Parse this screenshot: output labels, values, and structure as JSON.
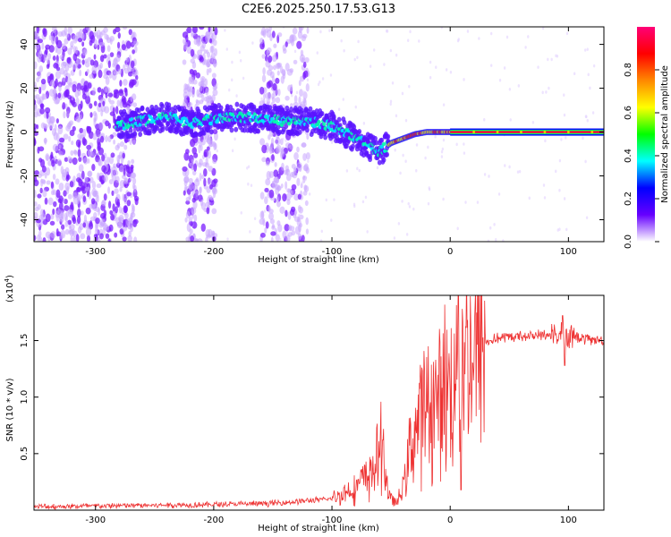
{
  "page_title": "C2E6.2025.250.17.53.G13",
  "chart_data": [
    {
      "type": "heatmap",
      "title": "C2E6.2025.250.17.53.G13",
      "xlabel": "Height of straight line (km)",
      "ylabel": "Frequency (Hz)",
      "xlim": [
        -352,
        130
      ],
      "ylim": [
        -50,
        48
      ],
      "xticks": [
        -300,
        -200,
        -100,
        0,
        100
      ],
      "xtick_labels": [
        "-300",
        "-200",
        "-100",
        "0",
        "100"
      ],
      "yticks": [
        -40,
        -20,
        0,
        20,
        40
      ],
      "ytick_labels": [
        "-40",
        "-20",
        "0",
        "20",
        "40"
      ],
      "ridge": {
        "x": [
          -280,
          -260,
          -240,
          -220,
          -200,
          -180,
          -160,
          -140,
          -120,
          -100,
          -90,
          -80,
          -70,
          -60,
          -50,
          -40,
          -30,
          -20,
          -10,
          0,
          10,
          130
        ],
        "y": [
          3,
          5,
          7,
          4,
          6,
          7,
          6,
          5,
          5,
          3,
          0,
          -3,
          -6,
          -9,
          -5,
          -3,
          -1,
          0,
          0,
          0,
          0,
          0
        ]
      },
      "noise_bands": [
        {
          "from": -352,
          "to": -265,
          "level": "high"
        },
        {
          "from": -225,
          "to": -198,
          "level": "medium"
        },
        {
          "from": -160,
          "to": -120,
          "level": "medium"
        }
      ],
      "colorbar": {
        "label": "Normalized spectral amplitude",
        "range": [
          0,
          1
        ],
        "ticks": [
          0.0,
          0.2,
          0.4,
          0.6,
          0.8
        ],
        "tick_labels": [
          "0.0",
          "0.2",
          "0.4",
          "0.6",
          "0.8"
        ],
        "colors": [
          "#ffffff",
          "#6600ff",
          "#0000ff",
          "#00ffff",
          "#00ff00",
          "#ffff00",
          "#ff8800",
          "#ff0000",
          "#ff0077"
        ]
      }
    },
    {
      "type": "line",
      "xlabel": "Height of straight line (km)",
      "ylabel": "SNR (10 * v/v)",
      "scale_label": "(x10",
      "scale_exponent": "4",
      "scale_close": ")",
      "xlim": [
        -352,
        130
      ],
      "ylim": [
        0,
        1.9
      ],
      "xticks": [
        -300,
        -200,
        -100,
        0,
        100
      ],
      "xtick_labels": [
        "-300",
        "-200",
        "-100",
        "0",
        "100"
      ],
      "yticks": [
        0.5,
        1.0,
        1.5
      ],
      "ytick_labels": [
        "0.5",
        "1.0",
        "1.5"
      ],
      "color": "#ee3333",
      "envelope": {
        "x": [
          -352,
          -200,
          -150,
          -100,
          -80,
          -65,
          -60,
          -57,
          -52,
          -45,
          -40,
          -35,
          -30,
          -25,
          -20,
          -15,
          -10,
          -5,
          0,
          5,
          10,
          20,
          30,
          40,
          60,
          80,
          90,
          100,
          110,
          130
        ],
        "y": [
          0.03,
          0.05,
          0.06,
          0.1,
          0.2,
          0.35,
          0.5,
          0.55,
          0.12,
          0.06,
          0.2,
          0.5,
          0.7,
          0.85,
          0.95,
          0.9,
          1.0,
          1.05,
          1.1,
          1.2,
          1.3,
          1.4,
          1.48,
          1.52,
          1.54,
          1.55,
          1.54,
          1.55,
          1.52,
          1.5
        ]
      },
      "spikes": [
        {
          "x": 7,
          "y": 1.9
        },
        {
          "x": 9,
          "y": 0.18
        },
        {
          "x": 95,
          "y": 1.72
        },
        {
          "x": 97,
          "y": 1.28
        },
        {
          "x": -57,
          "y": 0.62
        }
      ]
    }
  ]
}
